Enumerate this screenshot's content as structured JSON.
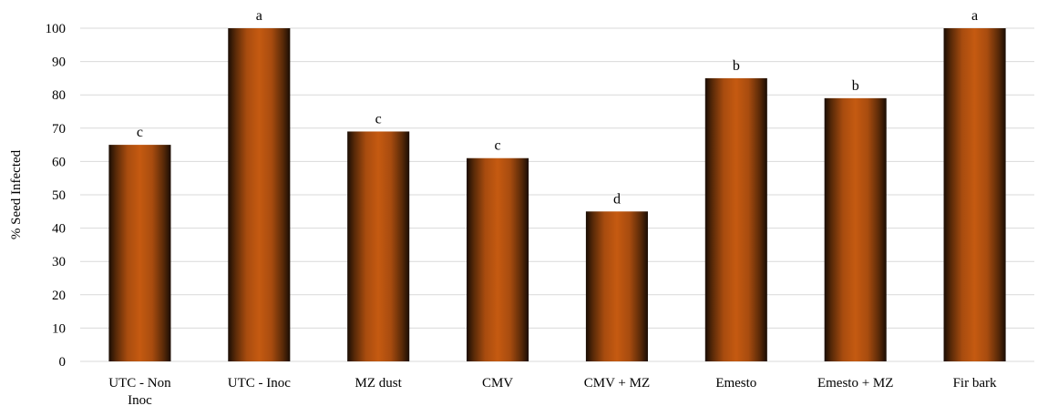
{
  "chart_data": {
    "type": "bar",
    "title": "",
    "xlabel": "",
    "ylabel": "% Seed Infected",
    "ylim": [
      0,
      100
    ],
    "yticks": [
      0,
      10,
      20,
      30,
      40,
      50,
      60,
      70,
      80,
      90,
      100
    ],
    "grid": true,
    "legend": "none",
    "bar_color": "#c55a11",
    "bar_edge_color": "#1a0d04",
    "categories": [
      "UTC - Non Inoc",
      "UTC - Inoc",
      "MZ dust",
      "CMV",
      "CMV + MZ",
      "Emesto",
      "Emesto + MZ",
      "Fir bark"
    ],
    "category_lines": [
      [
        "UTC - Non",
        "Inoc"
      ],
      [
        "UTC - Inoc"
      ],
      [
        "MZ dust"
      ],
      [
        "CMV"
      ],
      [
        "CMV + MZ"
      ],
      [
        "Emesto"
      ],
      [
        "Emesto + MZ"
      ],
      [
        "Fir bark"
      ]
    ],
    "values": [
      65,
      100,
      69,
      61,
      45,
      85,
      79,
      100
    ],
    "data_labels": [
      "c",
      "a",
      "c",
      "c",
      "d",
      "b",
      "b",
      "a"
    ]
  }
}
